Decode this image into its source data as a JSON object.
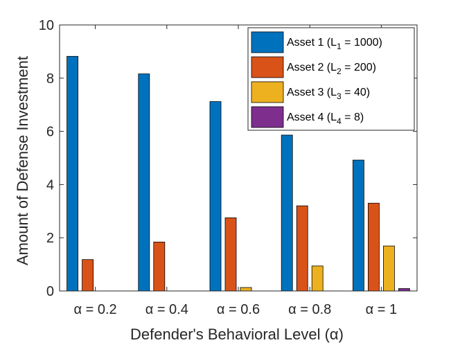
{
  "chart_data": {
    "type": "bar",
    "title": "",
    "xlabel": "Defender's Behavioral Level (α)",
    "ylabel": "Amount of Defense Investment",
    "categories": [
      "α = 0.2",
      "α = 0.4",
      "α = 0.6",
      "α = 0.8",
      "α = 1"
    ],
    "ylim": [
      0,
      10
    ],
    "yticks": [
      0,
      2,
      4,
      6,
      8,
      10
    ],
    "grid": false,
    "legend_position": "top-right",
    "series": [
      {
        "name": "Asset 1 (L1 = 1000)",
        "label_main": "Asset 1 (L",
        "label_sub": "1",
        "label_tail": " = 1000)",
        "color": "#0072BD",
        "values": [
          8.82,
          8.16,
          7.12,
          5.86,
          4.92
        ]
      },
      {
        "name": "Asset 2 (L2 = 200)",
        "label_main": "Asset 2 (L",
        "label_sub": "2",
        "label_tail": " = 200)",
        "color": "#D95319",
        "values": [
          1.18,
          1.84,
          2.75,
          3.2,
          3.3
        ]
      },
      {
        "name": "Asset 3 (L3 = 40)",
        "label_main": "Asset 3 (L",
        "label_sub": "3",
        "label_tail": " = 40)",
        "color": "#EDB120",
        "values": [
          0.0,
          0.0,
          0.13,
          0.94,
          1.69
        ]
      },
      {
        "name": "Asset 4 (L4 = 8)",
        "label_main": "Asset 4 (L",
        "label_sub": "4",
        "label_tail": " = 8)",
        "color": "#7E2F8E",
        "values": [
          0.0,
          0.0,
          0.0,
          0.0,
          0.09
        ]
      }
    ]
  }
}
